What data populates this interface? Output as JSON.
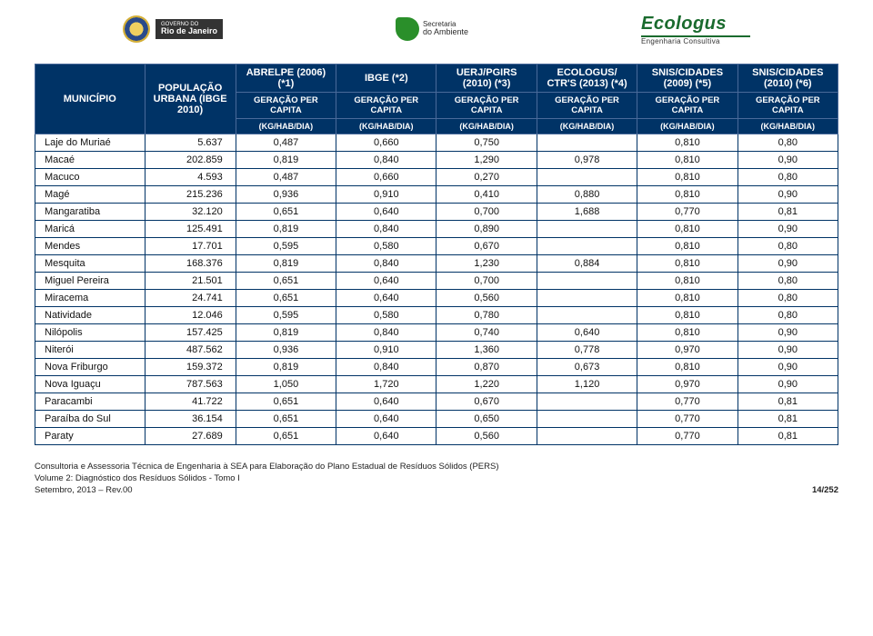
{
  "header": {
    "rj_small": "GOVERNO DO",
    "rj_big": "Rio de Janeiro",
    "ambiente_l1": "Secretaria",
    "ambiente_l2": "do Ambiente",
    "ecologus_brand": "Ecologus",
    "ecologus_sub": "Engenharia Consultiva"
  },
  "table": {
    "head": {
      "municipio": "MUNICÍPIO",
      "pop": "POPULAÇÃO URBANA (IBGE 2010)",
      "sources": [
        {
          "top": "ABRELPE (2006) (*1)"
        },
        {
          "top": "IBGE (*2)"
        },
        {
          "top": "UERJ/PGIRS (2010) (*3)"
        },
        {
          "top": "ECOLOGUS/ CTR'S (2013) (*4)"
        },
        {
          "top": "SNIS/CIDADES (2009) (*5)"
        },
        {
          "top": "SNIS/CIDADES (2010) (*6)"
        }
      ],
      "sub": "GERAÇÃO PER CAPITA",
      "unit": "(KG/HAB/DIA)"
    },
    "rows": [
      {
        "m": "Laje do Muriaé",
        "p": "5.637",
        "v": [
          "0,487",
          "0,660",
          "0,750",
          "",
          "0,810",
          "0,80"
        ]
      },
      {
        "m": "Macaé",
        "p": "202.859",
        "v": [
          "0,819",
          "0,840",
          "1,290",
          "0,978",
          "0,810",
          "0,90"
        ]
      },
      {
        "m": "Macuco",
        "p": "4.593",
        "v": [
          "0,487",
          "0,660",
          "0,270",
          "",
          "0,810",
          "0,80"
        ]
      },
      {
        "m": "Magé",
        "p": "215.236",
        "v": [
          "0,936",
          "0,910",
          "0,410",
          "0,880",
          "0,810",
          "0,90"
        ]
      },
      {
        "m": "Mangaratiba",
        "p": "32.120",
        "v": [
          "0,651",
          "0,640",
          "0,700",
          "1,688",
          "0,770",
          "0,81"
        ]
      },
      {
        "m": "Maricá",
        "p": "125.491",
        "v": [
          "0,819",
          "0,840",
          "0,890",
          "",
          "0,810",
          "0,90"
        ]
      },
      {
        "m": "Mendes",
        "p": "17.701",
        "v": [
          "0,595",
          "0,580",
          "0,670",
          "",
          "0,810",
          "0,80"
        ]
      },
      {
        "m": "Mesquita",
        "p": "168.376",
        "v": [
          "0,819",
          "0,840",
          "1,230",
          "0,884",
          "0,810",
          "0,90"
        ]
      },
      {
        "m": "Miguel Pereira",
        "p": "21.501",
        "v": [
          "0,651",
          "0,640",
          "0,700",
          "",
          "0,810",
          "0,80"
        ]
      },
      {
        "m": "Miracema",
        "p": "24.741",
        "v": [
          "0,651",
          "0,640",
          "0,560",
          "",
          "0,810",
          "0,80"
        ]
      },
      {
        "m": "Natividade",
        "p": "12.046",
        "v": [
          "0,595",
          "0,580",
          "0,780",
          "",
          "0,810",
          "0,80"
        ]
      },
      {
        "m": "Nilópolis",
        "p": "157.425",
        "v": [
          "0,819",
          "0,840",
          "0,740",
          "0,640",
          "0,810",
          "0,90"
        ]
      },
      {
        "m": "Niterói",
        "p": "487.562",
        "v": [
          "0,936",
          "0,910",
          "1,360",
          "0,778",
          "0,970",
          "0,90"
        ]
      },
      {
        "m": "Nova Friburgo",
        "p": "159.372",
        "v": [
          "0,819",
          "0,840",
          "0,870",
          "0,673",
          "0,810",
          "0,90"
        ]
      },
      {
        "m": "Nova Iguaçu",
        "p": "787.563",
        "v": [
          "1,050",
          "1,720",
          "1,220",
          "1,120",
          "0,970",
          "0,90"
        ]
      },
      {
        "m": "Paracambi",
        "p": "41.722",
        "v": [
          "0,651",
          "0,640",
          "0,670",
          "",
          "0,770",
          "0,81"
        ]
      },
      {
        "m": "Paraíba do Sul",
        "p": "36.154",
        "v": [
          "0,651",
          "0,640",
          "0,650",
          "",
          "0,770",
          "0,81"
        ]
      },
      {
        "m": "Paraty",
        "p": "27.689",
        "v": [
          "0,651",
          "0,640",
          "0,560",
          "",
          "0,770",
          "0,81"
        ]
      }
    ]
  },
  "footer": {
    "l1": "Consultoria e Assessoria Técnica de Engenharia à SEA para Elaboração do Plano Estadual de Resíduos Sólidos (PERS)",
    "l2": "Volume 2: Diagnóstico dos Resíduos Sólidos - Tomo I",
    "l3": "Setembro, 2013 – Rev.00",
    "page": "14/252"
  },
  "style": {
    "header_bg": "#003366",
    "header_fg": "#ffffff",
    "border": "#003366"
  }
}
